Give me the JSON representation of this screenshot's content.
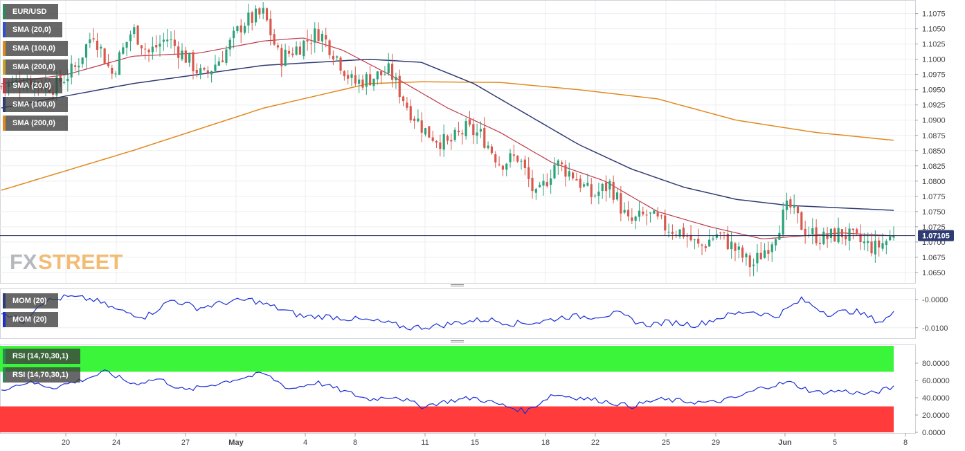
{
  "symbol": "EUR/USD",
  "last_price_label": "1.07105",
  "watermark": {
    "part1": "FX",
    "part2": "STREET"
  },
  "colors": {
    "up": "#2aa37a",
    "down": "#d8584c",
    "sma20": "#c0394b",
    "sma100": "#2f3b73",
    "sma200": "#e08a1e",
    "indicator": "#1a2fd6",
    "rsi_overbought": "#3bf53b",
    "rsi_oversold": "#ff3b3b",
    "price_line": "#1f2a60"
  },
  "legends": {
    "main": [
      {
        "label": "EUR/USD",
        "color": "#2a8a5a"
      },
      {
        "label": "SMA (20,0)",
        "color": "#2f4fd6"
      },
      {
        "label": "SMA (100,0)",
        "color": "#e08a1e"
      },
      {
        "label": "SMA (200,0)",
        "color": "#c9a227"
      },
      {
        "label": "SMA (20,0)",
        "color": "#c0394b"
      },
      {
        "label": "SMA (100,0)",
        "color": "#2f3b73"
      },
      {
        "label": "SMA (200,0)",
        "color": "#e08a1e"
      }
    ],
    "mom": [
      {
        "label": "MOM (20)",
        "color": "#2f3b73"
      },
      {
        "label": "MOM (20)",
        "color": "#1a2fd6"
      }
    ],
    "rsi": [
      {
        "label": "RSI (14,70,30,1)",
        "color": "#2aa37a"
      },
      {
        "label": "RSI (14,70,30,1)",
        "color": "#2aa37a"
      }
    ]
  },
  "chart_data": [
    {
      "type": "candlestick",
      "title": "EUR/USD",
      "timeframe_note": "",
      "x_tick_labels": [
        "20",
        "24",
        "27",
        "May",
        "4",
        "8",
        "11",
        "15",
        "18",
        "22",
        "25",
        "29",
        "Jun",
        "5",
        "8"
      ],
      "y_tick_labels": [
        "1.0650",
        "1.0675",
        "1.0700",
        "1.0725",
        "1.0750",
        "1.0775",
        "1.0800",
        "1.0825",
        "1.0850",
        "1.0875",
        "1.0900",
        "1.0925",
        "1.0950",
        "1.0975",
        "1.1000",
        "1.1025",
        "1.1050",
        "1.1075"
      ],
      "ylim": [
        1.0634,
        1.1095
      ],
      "last_price": 1.07105,
      "candle_count": 243,
      "close_anchors": [
        [
          0,
          1.0955
        ],
        [
          10,
          1.0965
        ],
        [
          20,
          1.0955
        ],
        [
          28,
          1.0985
        ],
        [
          35,
          1.1045
        ],
        [
          42,
          1.0975
        ],
        [
          50,
          1.105
        ],
        [
          56,
          1.101
        ],
        [
          63,
          1.1035
        ],
        [
          71,
          1.1
        ],
        [
          77,
          1.097
        ],
        [
          85,
          1.101
        ],
        [
          92,
          1.106
        ],
        [
          100,
          1.1075
        ],
        [
          106,
          1.1
        ],
        [
          113,
          1.102
        ],
        [
          121,
          1.1045
        ],
        [
          127,
          1.101
        ],
        [
          134,
          1.096
        ],
        [
          141,
          1.097
        ],
        [
          148,
          1.098
        ],
        [
          155,
          1.092
        ],
        [
          162,
          1.088
        ],
        [
          170,
          1.086
        ],
        [
          177,
          1.0885
        ],
        [
          183,
          1.0875
        ],
        [
          190,
          1.083
        ],
        [
          197,
          1.084
        ],
        [
          204,
          1.077
        ],
        [
          211,
          1.083
        ],
        [
          218,
          1.081
        ],
        [
          225,
          1.0775
        ],
        [
          232,
          1.0795
        ],
        [
          239,
          1.073
        ],
        [
          246,
          1.0745
        ],
        [
          253,
          1.0725
        ],
        [
          260,
          1.0715
        ],
        [
          266,
          1.069
        ],
        [
          273,
          1.0715
        ],
        [
          279,
          1.069
        ],
        [
          286,
          1.066
        ],
        [
          293,
          1.07
        ],
        [
          300,
          1.076
        ],
        [
          306,
          1.072
        ],
        [
          313,
          1.0705
        ],
        [
          320,
          1.0715
        ],
        [
          327,
          1.07
        ],
        [
          333,
          1.069
        ],
        [
          340,
          1.07105
        ]
      ],
      "sma20_anchors": [
        [
          0,
          1.096
        ],
        [
          25,
          1.0975
        ],
        [
          50,
          1.1005
        ],
        [
          75,
          1.101
        ],
        [
          100,
          1.103
        ],
        [
          115,
          1.1035
        ],
        [
          130,
          1.1015
        ],
        [
          150,
          1.097
        ],
        [
          170,
          1.092
        ],
        [
          190,
          1.088
        ],
        [
          210,
          1.083
        ],
        [
          230,
          1.08
        ],
        [
          250,
          1.075
        ],
        [
          270,
          1.0725
        ],
        [
          290,
          1.0705
        ],
        [
          305,
          1.071
        ],
        [
          320,
          1.0715
        ],
        [
          340,
          1.071
        ]
      ],
      "sma100_anchors": [
        [
          0,
          1.092
        ],
        [
          50,
          1.096
        ],
        [
          100,
          1.099
        ],
        [
          140,
          1.1
        ],
        [
          160,
          1.0995
        ],
        [
          180,
          1.096
        ],
        [
          200,
          1.091
        ],
        [
          220,
          1.086
        ],
        [
          240,
          1.082
        ],
        [
          260,
          1.079
        ],
        [
          280,
          1.077
        ],
        [
          300,
          1.076
        ],
        [
          340,
          1.0752
        ]
      ],
      "sma200_anchors": [
        [
          0,
          1.0785
        ],
        [
          50,
          1.085
        ],
        [
          100,
          1.092
        ],
        [
          140,
          1.096
        ],
        [
          160,
          1.0963
        ],
        [
          190,
          1.0962
        ],
        [
          220,
          1.095
        ],
        [
          250,
          1.0935
        ],
        [
          280,
          1.09
        ],
        [
          310,
          1.088
        ],
        [
          340,
          1.0867
        ]
      ]
    },
    {
      "type": "line",
      "title": "MOM (20)",
      "y_tick_labels": [
        "-0.0000",
        "-0.0100"
      ],
      "ylim": [
        -0.0135,
        0.0035
      ],
      "series_anchors": [
        [
          0,
          -0.004
        ],
        [
          8,
          -0.008
        ],
        [
          15,
          -0.001
        ],
        [
          25,
          0.001
        ],
        [
          35,
          0.0
        ],
        [
          45,
          -0.004
        ],
        [
          55,
          -0.006
        ],
        [
          65,
          0.0
        ],
        [
          75,
          -0.003
        ],
        [
          85,
          -0.001
        ],
        [
          95,
          0.0
        ],
        [
          105,
          -0.003
        ],
        [
          115,
          -0.006
        ],
        [
          125,
          -0.006
        ],
        [
          135,
          -0.007
        ],
        [
          145,
          -0.008
        ],
        [
          155,
          -0.01
        ],
        [
          165,
          -0.0095
        ],
        [
          175,
          -0.008
        ],
        [
          185,
          -0.007
        ],
        [
          195,
          -0.0085
        ],
        [
          205,
          -0.008
        ],
        [
          215,
          -0.006
        ],
        [
          225,
          -0.006
        ],
        [
          235,
          -0.005
        ],
        [
          245,
          -0.009
        ],
        [
          255,
          -0.008
        ],
        [
          265,
          -0.009
        ],
        [
          275,
          -0.006
        ],
        [
          285,
          -0.004
        ],
        [
          295,
          -0.006
        ],
        [
          305,
          0.0
        ],
        [
          315,
          -0.005
        ],
        [
          325,
          -0.004
        ],
        [
          335,
          -0.008
        ],
        [
          340,
          -0.005
        ]
      ]
    },
    {
      "type": "line",
      "title": "RSI (14,70,30,1)",
      "y_tick_labels": [
        "80.0000",
        "60.0000",
        "40.0000",
        "20.0000",
        "0.0000"
      ],
      "ylim": [
        0,
        100
      ],
      "overbought": 70,
      "oversold": 30,
      "series_anchors": [
        [
          0,
          50
        ],
        [
          10,
          58
        ],
        [
          20,
          52
        ],
        [
          30,
          60
        ],
        [
          40,
          70
        ],
        [
          50,
          56
        ],
        [
          60,
          62
        ],
        [
          70,
          48
        ],
        [
          80,
          55
        ],
        [
          90,
          62
        ],
        [
          100,
          68
        ],
        [
          110,
          50
        ],
        [
          120,
          58
        ],
        [
          130,
          48
        ],
        [
          140,
          38
        ],
        [
          150,
          42
        ],
        [
          160,
          30
        ],
        [
          170,
          36
        ],
        [
          180,
          40
        ],
        [
          190,
          32
        ],
        [
          200,
          24
        ],
        [
          210,
          44
        ],
        [
          220,
          40
        ],
        [
          230,
          36
        ],
        [
          240,
          30
        ],
        [
          250,
          38
        ],
        [
          260,
          36
        ],
        [
          270,
          34
        ],
        [
          280,
          40
        ],
        [
          290,
          52
        ],
        [
          300,
          58
        ],
        [
          310,
          46
        ],
        [
          320,
          48
        ],
        [
          330,
          44
        ],
        [
          340,
          52
        ]
      ]
    }
  ]
}
